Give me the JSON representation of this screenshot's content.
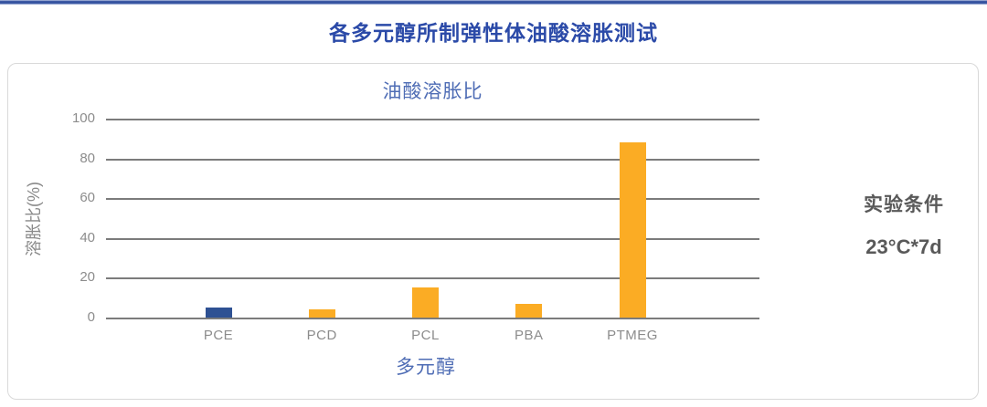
{
  "page": {
    "main_title": "各多元醇所制弹性体油酸溶胀测试",
    "accent_color": "#2b4aa8"
  },
  "chart_data": {
    "type": "bar",
    "title": "油酸溶胀比",
    "xlabel": "多元醇",
    "ylabel": "溶胀比(%)",
    "categories": [
      "PCE",
      "PCD",
      "PCL",
      "PBA",
      "PTMEG"
    ],
    "values": [
      5,
      4,
      15,
      7,
      88
    ],
    "bar_colors": [
      "#2e5193",
      "#fbac24",
      "#fbac24",
      "#fbac24",
      "#fbac24"
    ],
    "yticks": [
      0,
      20,
      40,
      60,
      80,
      100
    ],
    "ylim": [
      0,
      100
    ],
    "grid": true,
    "gridline_color": "#7b7b7b",
    "legend": "none"
  },
  "annotation": {
    "line1": "实验条件",
    "line2": "23°C*7d"
  }
}
